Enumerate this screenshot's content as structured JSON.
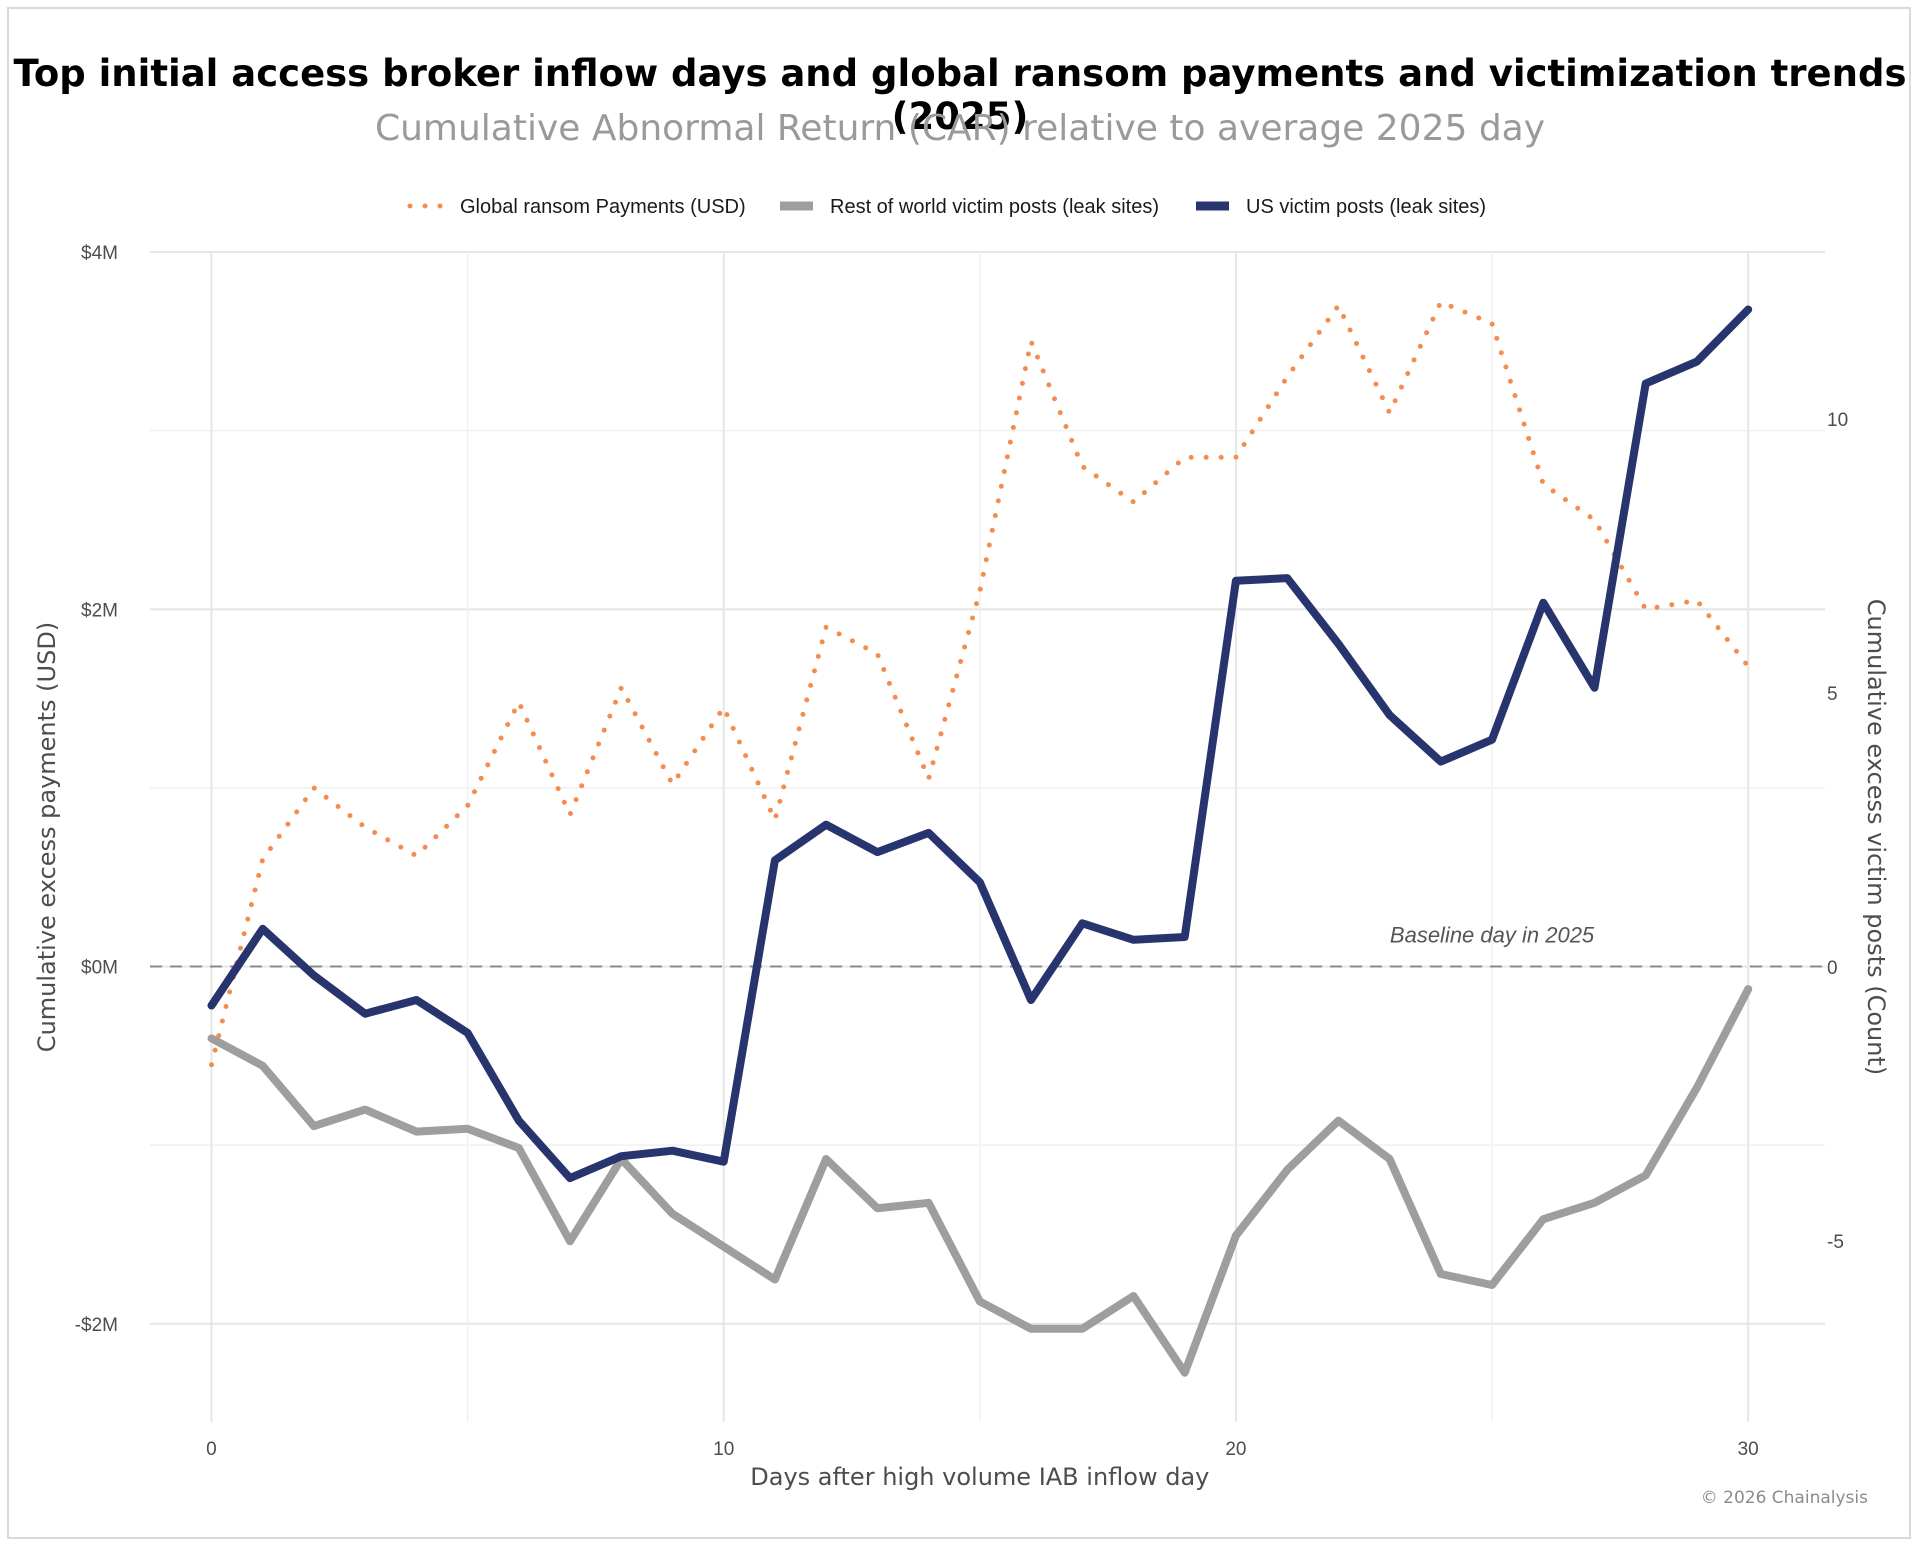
{
  "chart_data": {
    "type": "line",
    "title": "Top initial access broker inflow days and global ransom payments and victimization trends (2025)",
    "subtitle": "Cumulative Abnormal Return (CAR) relative to average 2025 day",
    "xlabel": "Days after high volume IAB inflow day",
    "ylabel_left": "Cumulative excess payments (USD)",
    "ylabel_right": "Cumulative excess victim posts (Count)",
    "xlim": [
      -1.2,
      31.5
    ],
    "ylim_left": [
      -2.55,
      4.0
    ],
    "ylim_right": [
      -8.3,
      13.05
    ],
    "x_ticks": [
      0,
      10,
      20,
      30
    ],
    "x_tick_labels": [
      "0",
      "10",
      "20",
      "30"
    ],
    "x_minor_ticks": [
      5,
      15,
      25
    ],
    "left_ticks": [
      4,
      2,
      0,
      -2
    ],
    "left_tick_labels": [
      "$4M",
      "$2M",
      "$0M",
      "-$2M"
    ],
    "left_minor_ticks": [
      3,
      1,
      -1
    ],
    "right_ticks": [
      10,
      5,
      0,
      -5
    ],
    "right_tick_labels": [
      "10",
      "5",
      "0",
      "-5"
    ],
    "baseline": {
      "value": 0,
      "label": "Baseline day in 2025",
      "at_x": 25
    },
    "legend": [
      {
        "name": "Global ransom Payments (USD)",
        "color": "#f58b4f",
        "style": "dotted"
      },
      {
        "name": "Rest of world victim posts (leak sites)",
        "color": "#9e9e9e",
        "style": "solid"
      },
      {
        "name": "US victim posts (leak sites)",
        "color": "#27346e",
        "style": "solid"
      }
    ],
    "x": [
      0,
      1,
      2,
      3,
      4,
      5,
      6,
      7,
      8,
      9,
      10,
      11,
      12,
      13,
      14,
      15,
      16,
      17,
      18,
      19,
      20,
      21,
      22,
      23,
      24,
      25,
      26,
      27,
      28,
      29,
      30
    ],
    "series": [
      {
        "name": "Global ransom Payments (USD)",
        "axis": "left",
        "unit": "USD millions",
        "color": "#f58b4f",
        "style": "dotted",
        "values": [
          -0.55,
          0.6,
          1.0,
          0.78,
          0.62,
          0.9,
          1.48,
          0.85,
          1.56,
          1.02,
          1.45,
          0.82,
          1.9,
          1.75,
          1.05,
          2.1,
          3.5,
          2.8,
          2.6,
          2.85,
          2.85,
          3.3,
          3.7,
          3.1,
          3.72,
          3.6,
          2.7,
          2.5,
          2.0,
          2.05,
          1.68
        ]
      },
      {
        "name": "Rest of world victim posts (leak sites)",
        "axis": "right",
        "unit": "count",
        "color": "#9e9e9e",
        "style": "solid",
        "values": [
          -1.3,
          -1.8,
          -2.9,
          -2.6,
          -3.0,
          -2.95,
          -3.3,
          -5.0,
          -3.5,
          -4.5,
          -5.1,
          -5.7,
          -3.5,
          -4.4,
          -4.3,
          -6.1,
          -6.6,
          -6.6,
          -6.0,
          -7.4,
          -4.9,
          -3.7,
          -2.8,
          -3.5,
          -5.6,
          -5.8,
          -4.6,
          -4.3,
          -3.8,
          -2.2,
          -0.4
        ]
      },
      {
        "name": "US victim posts (leak sites)",
        "axis": "right",
        "unit": "count",
        "color": "#27346e",
        "style": "solid",
        "values": [
          -0.7,
          0.7,
          -0.15,
          -0.85,
          -0.6,
          -1.2,
          -2.8,
          -3.85,
          -3.45,
          -3.35,
          -3.55,
          1.95,
          2.6,
          2.1,
          2.45,
          1.55,
          -0.6,
          0.8,
          0.5,
          0.55,
          7.05,
          7.1,
          5.9,
          4.6,
          3.75,
          4.15,
          6.65,
          5.1,
          10.65,
          11.05,
          12.0
        ]
      }
    ]
  },
  "footer": {
    "copyright": "© 2026 Chainalysis"
  }
}
